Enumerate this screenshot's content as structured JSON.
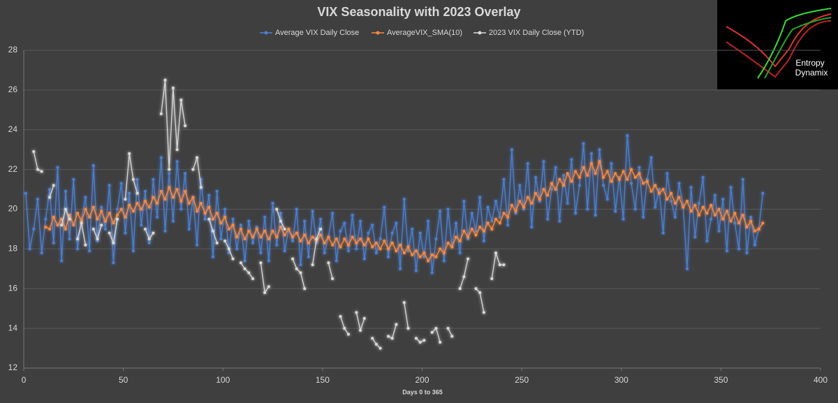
{
  "chart_data": {
    "type": "line",
    "title": "VIX Seasonality with 2023 Overlay",
    "xlabel": "Days 0 to 365",
    "watermark": [
      "Entropy",
      "Dynamix"
    ],
    "xlim": [
      0,
      400
    ],
    "xticks": [
      0,
      50,
      100,
      150,
      200,
      250,
      300,
      350,
      400
    ],
    "ylim": [
      12,
      28
    ],
    "yticks": [
      12,
      14,
      16,
      18,
      20,
      22,
      24,
      26,
      28
    ],
    "grid": true,
    "legend": "top",
    "x": [
      1,
      3,
      5,
      7,
      9,
      11,
      13,
      15,
      17,
      19,
      21,
      23,
      25,
      27,
      29,
      31,
      33,
      35,
      37,
      39,
      41,
      43,
      45,
      47,
      49,
      51,
      53,
      55,
      57,
      59,
      61,
      63,
      65,
      67,
      69,
      71,
      73,
      75,
      77,
      79,
      81,
      83,
      85,
      87,
      89,
      91,
      93,
      95,
      97,
      99,
      101,
      103,
      105,
      107,
      109,
      111,
      113,
      115,
      117,
      119,
      121,
      123,
      125,
      127,
      129,
      131,
      133,
      135,
      137,
      139,
      141,
      143,
      145,
      147,
      149,
      151,
      153,
      155,
      157,
      159,
      161,
      163,
      165,
      167,
      169,
      171,
      173,
      175,
      177,
      179,
      181,
      183,
      185,
      187,
      189,
      191,
      193,
      195,
      197,
      199,
      201,
      203,
      205,
      207,
      209,
      211,
      213,
      215,
      217,
      219,
      221,
      223,
      225,
      227,
      229,
      231,
      233,
      235,
      237,
      239,
      241,
      243,
      245,
      247,
      249,
      251,
      253,
      255,
      257,
      259,
      261,
      263,
      265,
      267,
      269,
      271,
      273,
      275,
      277,
      279,
      281,
      283,
      285,
      287,
      289,
      291,
      293,
      295,
      297,
      299,
      301,
      303,
      305,
      307,
      309,
      311,
      313,
      315,
      317,
      319,
      321,
      323,
      325,
      327,
      329,
      331,
      333,
      335,
      337,
      339,
      341,
      343,
      345,
      347,
      349,
      351,
      353,
      355,
      357,
      359,
      361,
      363,
      365,
      367,
      369,
      371
    ],
    "series": [
      {
        "name": "Average VIX Daily Close",
        "color": "#4a80d8",
        "values": [
          20.8,
          18.0,
          19.0,
          20.5,
          17.8,
          19.5,
          21.0,
          18.3,
          22.1,
          17.4,
          20.9,
          18.5,
          21.5,
          18.0,
          19.5,
          20.6,
          17.9,
          22.2,
          18.4,
          20.1,
          19.0,
          21.2,
          17.3,
          20.0,
          21.3,
          18.8,
          20.8,
          17.9,
          21.5,
          19.2,
          20.9,
          18.3,
          21.5,
          19.6,
          22.6,
          18.9,
          21.8,
          19.4,
          22.4,
          20.0,
          21.8,
          19.0,
          20.6,
          18.2,
          21.5,
          19.5,
          20.7,
          17.6,
          20.9,
          18.5,
          20.0,
          17.8,
          19.5,
          18.0,
          19.2,
          17.4,
          19.4,
          18.3,
          19.1,
          17.8,
          19.6,
          17.4,
          20.3,
          18.2,
          19.8,
          17.9,
          19.0,
          18.4,
          20.0,
          17.2,
          19.4,
          17.6,
          19.9,
          18.3,
          19.5,
          17.8,
          18.6,
          19.8,
          17.4,
          18.9,
          19.3,
          17.9,
          19.7,
          18.0,
          19.4,
          17.5,
          18.8,
          19.2,
          17.8,
          18.5,
          20.1,
          17.6,
          18.8,
          19.3,
          17.0,
          20.5,
          17.9,
          19.0,
          16.9,
          18.8,
          17.6,
          19.4,
          16.8,
          18.5,
          19.9,
          17.4,
          20.0,
          18.1,
          19.3,
          17.8,
          20.4,
          18.5,
          19.8,
          18.9,
          20.6,
          18.4,
          20.1,
          19.4,
          20.4,
          19.6,
          21.5,
          19.2,
          23.0,
          19.8,
          21.2,
          20.0,
          22.3,
          19.1,
          21.6,
          20.4,
          22.4,
          19.5,
          21.0,
          22.1,
          19.4,
          21.7,
          20.3,
          22.5,
          19.8,
          21.2,
          23.3,
          20.0,
          22.8,
          19.7,
          23.0,
          21.2,
          20.5,
          22.3,
          19.9,
          21.6,
          19.5,
          23.7,
          21.3,
          20.0,
          22.1,
          19.6,
          21.5,
          22.6,
          20.1,
          21.0,
          18.8,
          21.8,
          20.4,
          19.6,
          21.3,
          20.2,
          17.0,
          21.1,
          18.6,
          20.3,
          21.6,
          18.4,
          19.5,
          20.7,
          18.9,
          20.5,
          17.9,
          21.1,
          19.3,
          18.0,
          21.5,
          17.8,
          19.6,
          18.2,
          19.0,
          20.8
        ]
      },
      {
        "name": "AverageVIX_SMA(10)",
        "color": "#ff8a3d",
        "values": [
          null,
          null,
          null,
          null,
          null,
          19.1,
          19.0,
          19.6,
          19.2,
          19.5,
          19.0,
          19.7,
          19.2,
          19.8,
          19.4,
          20.0,
          19.6,
          20.1,
          19.5,
          19.9,
          19.4,
          19.8,
          19.3,
          19.7,
          20.0,
          19.6,
          20.2,
          19.9,
          20.3,
          20.0,
          20.4,
          20.1,
          20.6,
          20.3,
          20.9,
          20.5,
          21.1,
          20.6,
          21.0,
          20.4,
          20.9,
          20.3,
          20.6,
          19.9,
          20.3,
          19.8,
          20.1,
          19.5,
          19.8,
          19.3,
          19.6,
          19.0,
          19.2,
          18.6,
          19.0,
          18.5,
          18.9,
          18.6,
          19.0,
          18.6,
          18.9,
          18.5,
          18.9,
          18.6,
          19.1,
          18.7,
          19.0,
          18.6,
          18.8,
          18.4,
          18.7,
          18.3,
          18.6,
          18.4,
          18.7,
          18.3,
          18.6,
          18.2,
          18.5,
          18.1,
          18.5,
          18.2,
          18.6,
          18.3,
          18.5,
          18.2,
          18.5,
          18.1,
          18.3,
          18.0,
          18.4,
          18.0,
          18.3,
          17.9,
          18.2,
          17.8,
          18.1,
          17.7,
          17.9,
          17.6,
          17.8,
          17.4,
          17.7,
          17.6,
          18.0,
          17.8,
          18.3,
          18.1,
          18.6,
          18.4,
          18.9,
          18.6,
          19.0,
          18.7,
          19.1,
          18.9,
          19.3,
          19.0,
          19.5,
          19.3,
          19.8,
          19.6,
          20.2,
          19.9,
          20.4,
          20.1,
          20.6,
          20.3,
          20.8,
          20.5,
          21.0,
          20.7,
          21.3,
          21.0,
          21.5,
          21.2,
          21.8,
          21.4,
          21.9,
          21.6,
          22.1,
          21.7,
          22.3,
          21.8,
          22.4,
          21.6,
          21.9,
          21.4,
          21.8,
          21.5,
          21.9,
          21.5,
          22.0,
          21.6,
          21.8,
          21.3,
          21.4,
          20.9,
          21.2,
          20.8,
          21.0,
          20.5,
          20.8,
          20.3,
          20.6,
          20.1,
          20.4,
          19.9,
          20.2,
          19.7,
          20.1,
          19.8,
          20.2,
          19.7,
          20.0,
          19.5,
          19.9,
          19.4,
          19.8,
          19.3,
          19.7,
          19.1,
          19.4,
          18.9,
          19.0,
          19.3
        ]
      },
      {
        "name": "2023 VIX Daily Close (YTD)",
        "color": "#d9d9d9",
        "values": [
          null,
          null,
          22.9,
          22.0,
          21.9,
          null,
          20.6,
          21.2,
          null,
          19.2,
          20.0,
          19.5,
          null,
          18.5,
          19.3,
          18.2,
          null,
          19.0,
          18.5,
          19.2,
          null,
          18.8,
          18.3,
          19.5,
          null,
          20.5,
          22.8,
          21.5,
          20.8,
          null,
          19.0,
          18.5,
          18.8,
          null,
          24.8,
          26.5,
          22.0,
          26.1,
          23.0,
          25.5,
          24.2,
          null,
          22.0,
          22.6,
          21.1,
          null,
          19.5,
          18.9,
          18.3,
          null,
          18.4,
          18.0,
          17.5,
          null,
          17.3,
          17.0,
          16.8,
          16.5,
          null,
          17.3,
          15.8,
          16.1,
          null,
          20.0,
          19.4,
          19.0,
          null,
          17.5,
          17.0,
          16.8,
          16.0,
          null,
          17.2,
          18.5,
          19.0,
          null,
          17.3,
          16.5,
          null,
          14.6,
          14.0,
          13.7,
          null,
          14.8,
          13.9,
          14.5,
          null,
          13.5,
          13.2,
          13.0,
          null,
          13.6,
          13.5,
          14.2,
          null,
          15.3,
          14.0,
          null,
          13.5,
          13.3,
          13.4,
          null,
          13.8,
          14.0,
          13.3,
          null,
          14.0,
          13.6,
          null,
          16.0,
          16.6,
          17.5,
          null,
          16.0,
          15.8,
          14.8,
          null,
          16.5,
          17.8,
          17.2,
          17.2,
          null,
          null,
          null,
          null,
          null,
          null,
          null,
          null,
          null,
          null,
          null,
          null,
          null,
          null,
          null,
          null,
          null,
          null,
          null,
          null,
          null,
          null,
          null,
          null,
          null,
          null,
          null,
          null,
          null,
          null,
          null,
          null,
          null,
          null,
          null,
          null,
          null,
          null,
          null,
          null,
          null,
          null,
          null,
          null,
          null,
          null,
          null,
          null,
          null,
          null,
          null,
          null,
          null,
          null,
          null,
          null,
          null,
          null,
          null,
          null,
          null,
          null,
          null,
          null,
          null
        ]
      }
    ]
  }
}
